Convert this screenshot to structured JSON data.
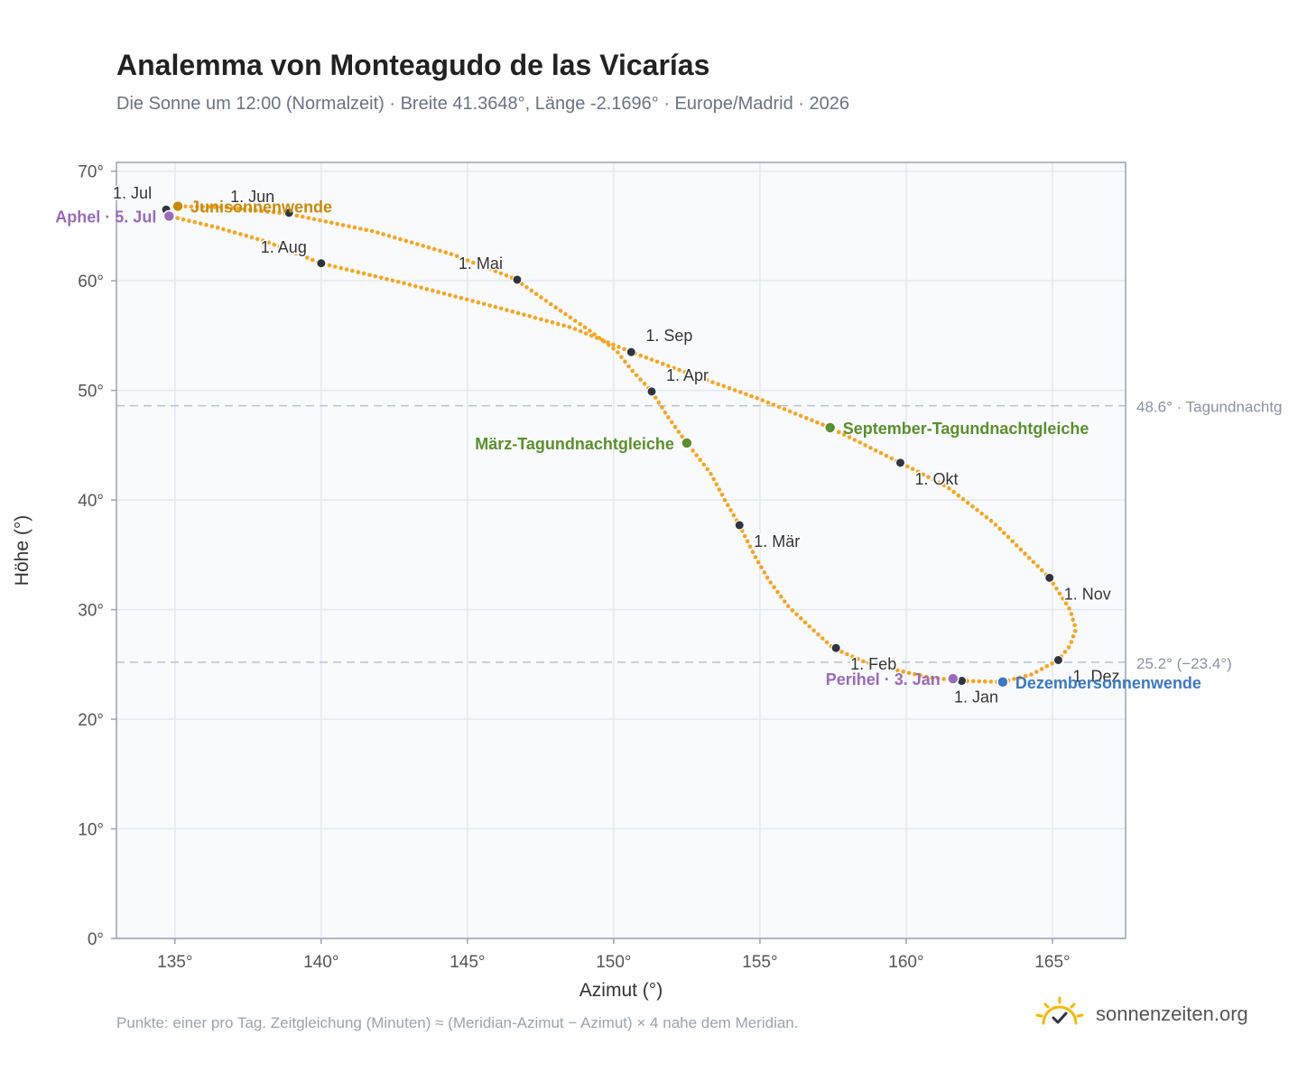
{
  "title": "Analemma von Monteagudo de las Vicarías",
  "subtitle": "Die Sonne um 12:00 (Normalzeit) · Breite 41.3648°, Länge -2.1696° · Europe/Madrid · 2026",
  "footnote": "Punkte: einer pro Tag. Zeitgleichung (Minuten) ≈ (Meridian-Azimut − Azimut) × 4 nahe dem Meridian.",
  "brand": {
    "name": "sonnenzeiten.org",
    "icon": "sun-check-icon",
    "color": "#f5b800"
  },
  "colors": {
    "curve": "#f5a623",
    "month_point": "#2f3440",
    "junisonnenwende": "#c98a0c",
    "equinox": "#5b8f2f",
    "dezember": "#3d78c2",
    "apsis": "#9b6bb8",
    "guide": "#b8c2cf",
    "plot_bg": "#f8fafc",
    "grid": "#e4e8ee"
  },
  "chart_data": {
    "type": "scatter",
    "xlabel": "Azimut (°)",
    "ylabel": "Höhe (°)",
    "xlim": [
      133,
      167.5
    ],
    "ylim": [
      0,
      70.8
    ],
    "x_ticks": [
      "135°",
      "140°",
      "145°",
      "150°",
      "155°",
      "160°",
      "165°"
    ],
    "x_tick_values": [
      135,
      140,
      145,
      150,
      155,
      160,
      165
    ],
    "y_ticks": [
      "0°",
      "10°",
      "20°",
      "30°",
      "40°",
      "50°",
      "60°",
      "70°"
    ],
    "y_tick_values": [
      0,
      10,
      20,
      30,
      40,
      50,
      60,
      70
    ],
    "grid": true,
    "series": [
      {
        "points_per": "day",
        "path": [
          [
            163.3,
            23.4
          ],
          [
            161.9,
            23.5
          ],
          [
            160.8,
            23.8
          ],
          [
            159.8,
            24.4
          ],
          [
            158.6,
            25.2
          ],
          [
            157.5,
            26.5
          ],
          [
            156.8,
            28.2
          ],
          [
            156.0,
            30.2
          ],
          [
            155.3,
            32.7
          ],
          [
            154.8,
            35.0
          ],
          [
            154.3,
            37.7
          ],
          [
            153.8,
            40.0
          ],
          [
            153.3,
            42.5
          ],
          [
            152.5,
            45.2
          ],
          [
            151.9,
            47.4
          ],
          [
            151.3,
            49.9
          ],
          [
            150.6,
            51.9
          ],
          [
            150.1,
            53.6
          ],
          [
            149.2,
            55.4
          ],
          [
            148.0,
            57.6
          ],
          [
            146.6,
            60.2
          ],
          [
            144.5,
            62.4
          ],
          [
            141.8,
            64.5
          ],
          [
            138.9,
            66.1
          ],
          [
            136.8,
            66.7
          ],
          [
            135.1,
            66.8
          ],
          [
            134.7,
            66.5
          ],
          [
            134.8,
            65.9
          ],
          [
            136.4,
            64.9
          ],
          [
            138.1,
            63.6
          ],
          [
            140.0,
            61.6
          ],
          [
            142.8,
            59.8
          ],
          [
            145.7,
            57.8
          ],
          [
            148.6,
            55.7
          ],
          [
            150.6,
            53.5
          ],
          [
            152.6,
            51.5
          ],
          [
            154.9,
            49.3
          ],
          [
            157.4,
            46.6
          ],
          [
            159.8,
            43.4
          ],
          [
            161.4,
            41.2
          ],
          [
            163.0,
            37.9
          ],
          [
            164.9,
            32.9
          ],
          [
            165.6,
            30.0
          ],
          [
            165.8,
            28.2
          ],
          [
            165.6,
            26.7
          ],
          [
            165.2,
            25.4
          ],
          [
            164.3,
            24.1
          ],
          [
            163.3,
            23.4
          ]
        ]
      }
    ],
    "month_points": [
      {
        "label": "1. Jan",
        "x": 161.9,
        "y": 23.5,
        "anchor": "below"
      },
      {
        "label": "1. Feb",
        "x": 157.6,
        "y": 26.5,
        "anchor": "below-right"
      },
      {
        "label": "1. Mär",
        "x": 154.3,
        "y": 37.7,
        "anchor": "below-right"
      },
      {
        "label": "1. Apr",
        "x": 151.3,
        "y": 49.9,
        "anchor": "above-right"
      },
      {
        "label": "1. Mai",
        "x": 146.7,
        "y": 60.1,
        "anchor": "above-left"
      },
      {
        "label": "1. Jun",
        "x": 138.9,
        "y": 66.2,
        "anchor": "above-left"
      },
      {
        "label": "1. Jul",
        "x": 134.7,
        "y": 66.5,
        "anchor": "above-left"
      },
      {
        "label": "1. Aug",
        "x": 140.0,
        "y": 61.6,
        "anchor": "above-left"
      },
      {
        "label": "1. Sep",
        "x": 150.6,
        "y": 53.5,
        "anchor": "above-right"
      },
      {
        "label": "1. Okt",
        "x": 159.8,
        "y": 43.4,
        "anchor": "below-right"
      },
      {
        "label": "1. Nov",
        "x": 164.9,
        "y": 32.9,
        "anchor": "below-right"
      },
      {
        "label": "1. Dez",
        "x": 165.2,
        "y": 25.4,
        "anchor": "below-right"
      }
    ],
    "events": [
      {
        "label": "Junisonnenwende",
        "x": 135.1,
        "y": 66.8,
        "color": "#c98a0c",
        "anchor": "right"
      },
      {
        "label": "Aphel · 5. Jul",
        "x": 134.8,
        "y": 65.9,
        "color": "#9b6bb8",
        "anchor": "left"
      },
      {
        "label": "März-Tagundnachtgleiche",
        "x": 152.5,
        "y": 45.2,
        "color": "#5b8f2f",
        "anchor": "left"
      },
      {
        "label": "September-Tagundnachtgleiche",
        "x": 157.4,
        "y": 46.6,
        "color": "#5b8f2f",
        "anchor": "right"
      },
      {
        "label": "Perihel · 3. Jan",
        "x": 161.6,
        "y": 23.7,
        "color": "#9b6bb8",
        "anchor": "left"
      },
      {
        "label": "Dezembersonnenwende",
        "x": 163.3,
        "y": 23.4,
        "color": "#3d78c2",
        "anchor": "right"
      }
    ],
    "reference_lines": [
      {
        "y": 48.6,
        "label": "48.6° · Tagundnachtg"
      },
      {
        "y": 25.2,
        "label": "25.2° (−23.4°)"
      }
    ]
  }
}
